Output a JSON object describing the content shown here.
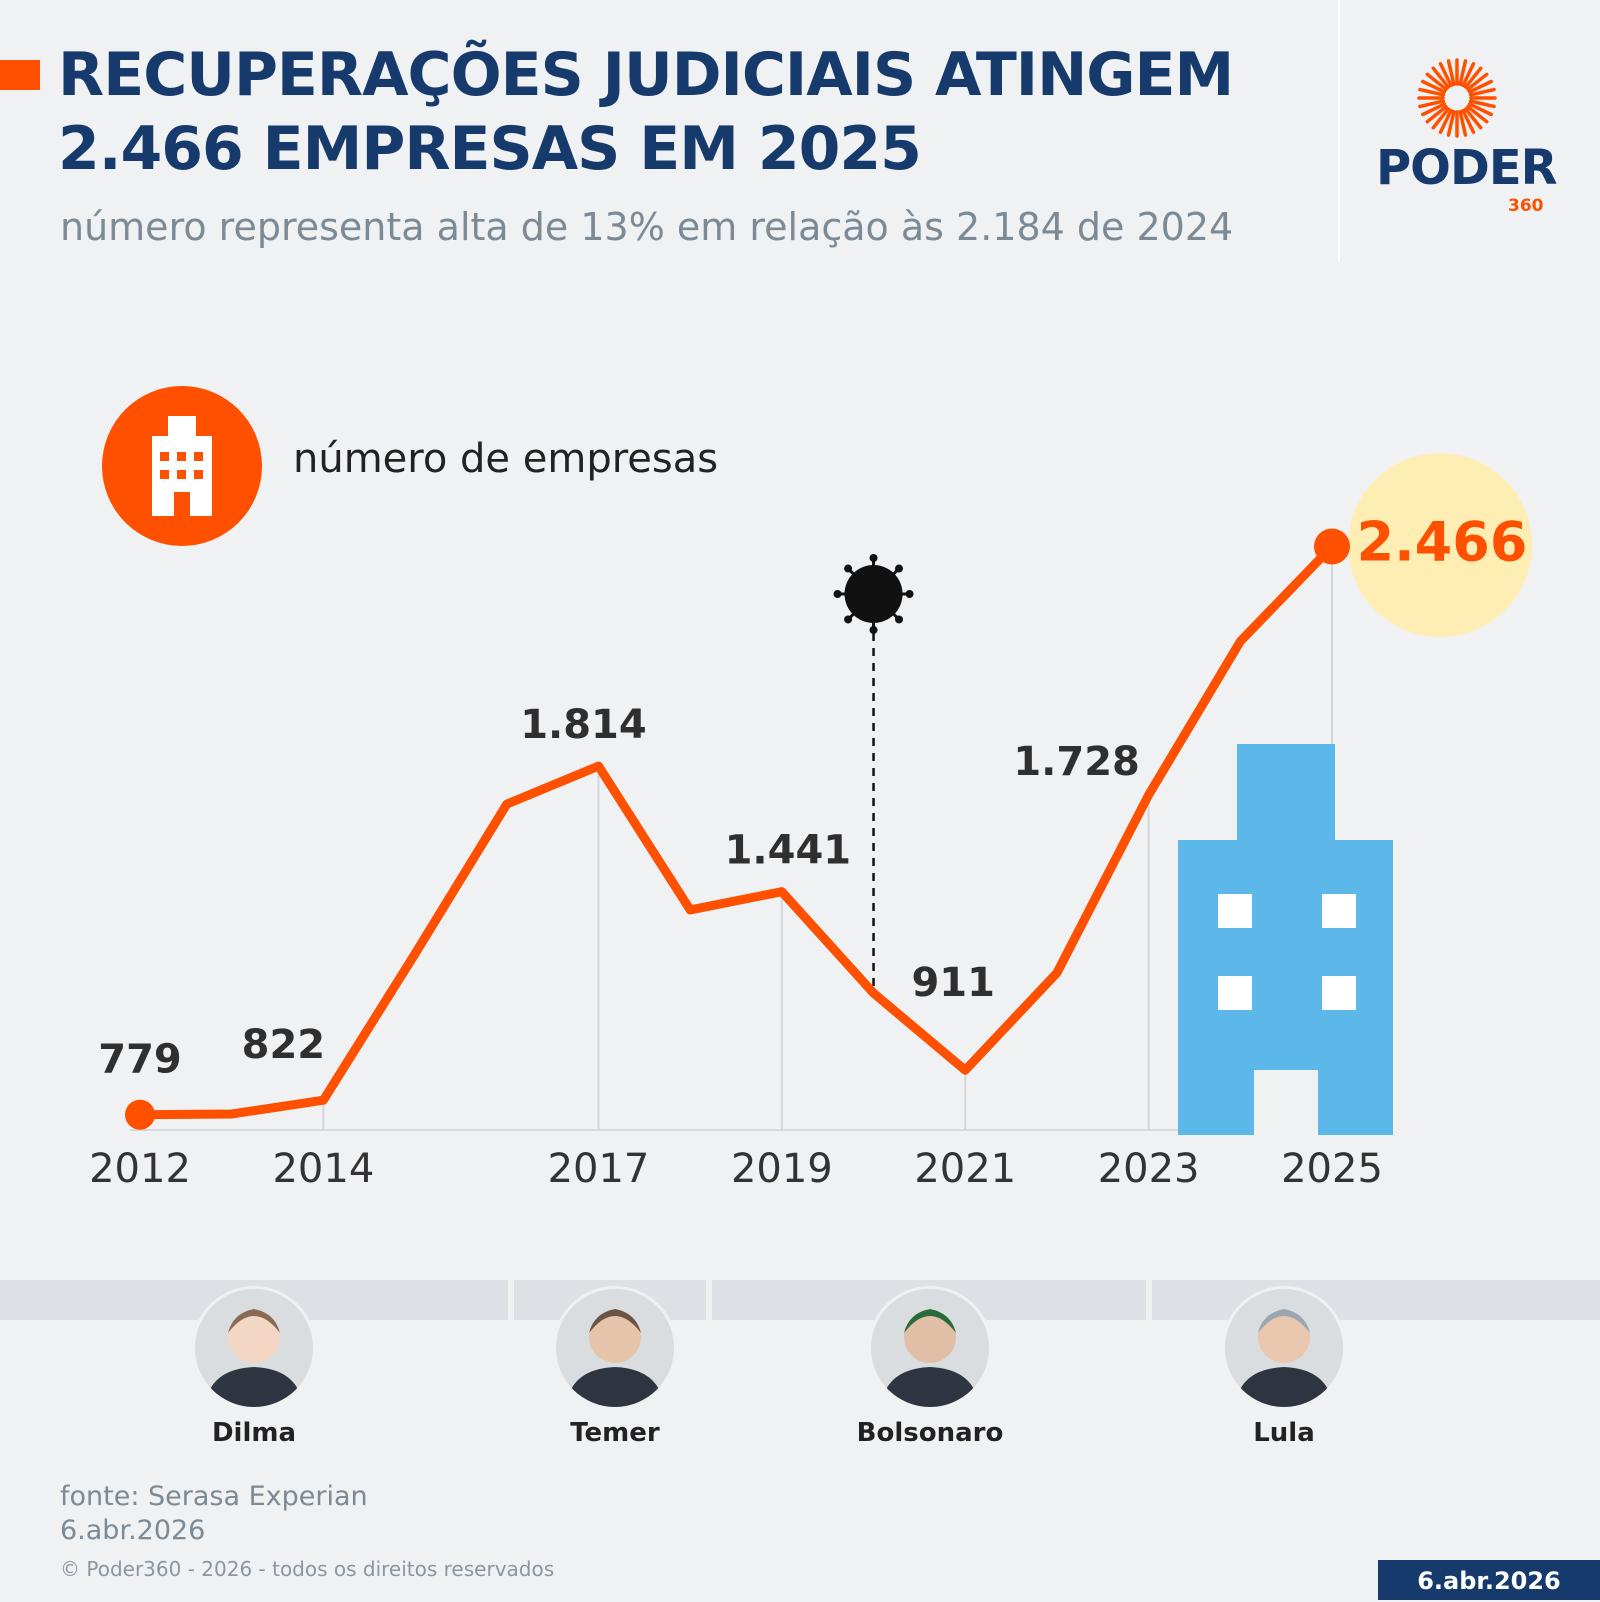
{
  "header": {
    "title": "RECUPERAÇÕES JUDICIAIS ATINGEM 2.466 EMPRESAS EM 2025",
    "subtitle": "número representa alta de 13% em relação às 2.184 de 2024"
  },
  "logo": {
    "word": "PODER",
    "number": "360"
  },
  "legend": {
    "label": "número de empresas",
    "icon": "building-icon"
  },
  "chart_data": {
    "type": "line",
    "x": [
      2012,
      2013,
      2014,
      2015,
      2016,
      2017,
      2018,
      2019,
      2020,
      2021,
      2022,
      2023,
      2024,
      2025
    ],
    "values": [
      779,
      781,
      822,
      1257,
      1701,
      1814,
      1387,
      1441,
      1140,
      911,
      1200,
      1728,
      2184,
      2466
    ],
    "labeled_points": [
      {
        "x": 2012,
        "label": "779"
      },
      {
        "x": 2014,
        "label": "822"
      },
      {
        "x": 2017,
        "label": "1.814"
      },
      {
        "x": 2019,
        "label": "1.441"
      },
      {
        "x": 2021,
        "label": "911"
      },
      {
        "x": 2023,
        "label": "1.728"
      },
      {
        "x": 2025,
        "label": "2.466"
      }
    ],
    "x_tick_labels": [
      "2012",
      "2014",
      "2017",
      "2019",
      "2021",
      "2023",
      "2025"
    ],
    "annotation": {
      "x": 2020,
      "icon": "virus-icon"
    },
    "ylim": [
      600,
      2500
    ],
    "series_color": "#ff5000",
    "highlight_color": "#ffeeb3",
    "building_color": "#5bb8e8"
  },
  "presidents": [
    {
      "name": "Dilma",
      "colors": [
        "#8a6a55",
        "#f3d7c4"
      ]
    },
    {
      "name": "Temer",
      "colors": [
        "#6b5444",
        "#e6c4ab"
      ]
    },
    {
      "name": "Bolsonaro",
      "colors": [
        "#2a6b3a",
        "#e0bfa6"
      ]
    },
    {
      "name": "Lula",
      "colors": [
        "#9aa7b0",
        "#e9c7ae"
      ]
    }
  ],
  "footer": {
    "source": "fonte: Serasa Experian",
    "date": "6.abr.2026",
    "copyright": "© Poder360 - 2026 - todos os direitos reservados",
    "badge": "6.abr.2026"
  }
}
